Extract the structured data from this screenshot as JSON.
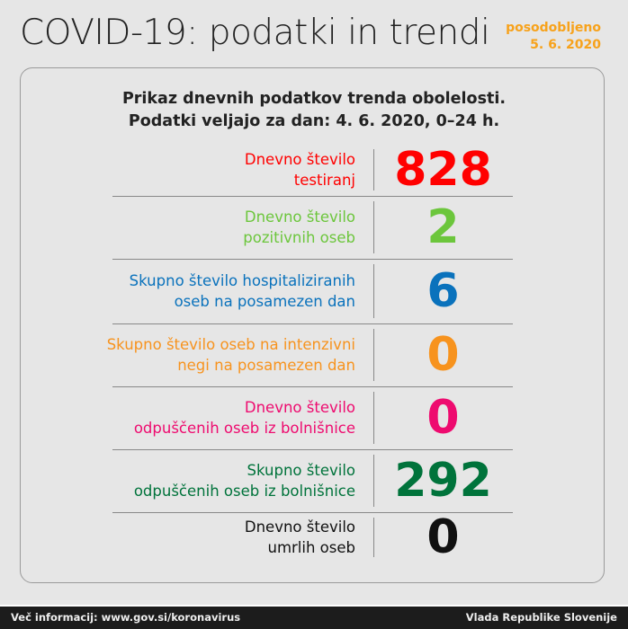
{
  "title": "COVID-19: podatki in trendi",
  "updated": {
    "label": "posodobljeno",
    "date": "5. 6. 2020"
  },
  "header": {
    "line1": "Prikaz dnevnih podatkov trenda obolelosti.",
    "line2": "Podatki veljajo za dan: 4. 6. 2020, 0–24 h."
  },
  "rows": [
    {
      "l1": "Dnevno število",
      "l2": "testiranj",
      "value": "828",
      "color": "#ff0000"
    },
    {
      "l1": "Dnevno število",
      "l2": "pozitivnih oseb",
      "value": "2",
      "color": "#6cc63c"
    },
    {
      "l1": "Skupno število hospitaliziranih",
      "l2": "oseb na posamezen dan",
      "value": "6",
      "color": "#0a72bc"
    },
    {
      "l1": "Skupno število oseb na intenzivni",
      "l2": "negi na posamezen dan",
      "value": "0",
      "color": "#f7931e"
    },
    {
      "l1": "Dnevno število",
      "l2": "odpuščenih oseb iz bolnišnice",
      "value": "0",
      "color": "#ee0b6f"
    },
    {
      "l1": "Skupno število",
      "l2": "odpuščenih oseb iz bolnišnice",
      "value": "292",
      "color": "#00733b"
    },
    {
      "l1": "Dnevno število",
      "l2": "umrlih oseb",
      "value": "0",
      "color": "#111111"
    }
  ],
  "footer": {
    "left": "Več informacij: www.gov.si/koronavirus",
    "right": "Vlada Republike Slovenije"
  }
}
